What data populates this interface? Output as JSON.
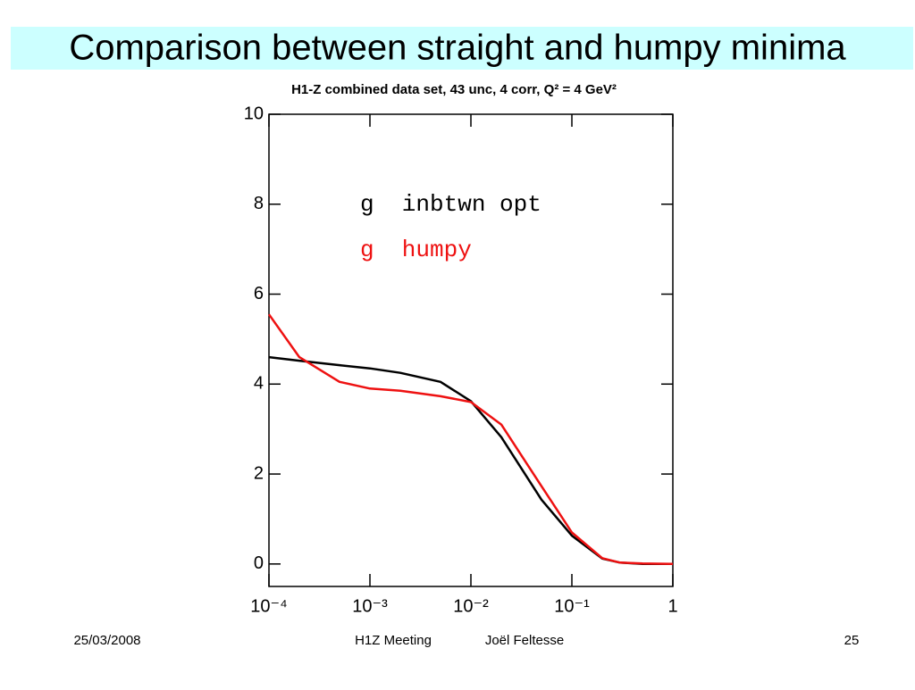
{
  "slide_title": "Comparison between straight and humpy minima",
  "chart_data": {
    "type": "line",
    "title": "H1-Z combined data set, 43 unc, 4 corr, Q² = 4 GeV²",
    "x": [
      0.0001,
      0.0002,
      0.0005,
      0.001,
      0.002,
      0.005,
      0.01,
      0.02,
      0.05,
      0.1,
      0.2,
      0.3,
      0.5,
      1
    ],
    "series": [
      {
        "name": "g  inbtwn opt",
        "color": "#000000",
        "values": [
          4.6,
          4.52,
          4.42,
          4.35,
          4.25,
          4.05,
          3.62,
          2.82,
          1.43,
          0.63,
          0.12,
          0.03,
          0.0,
          0.0
        ]
      },
      {
        "name": "g  humpy",
        "color": "#ee1111",
        "values": [
          5.55,
          4.6,
          4.05,
          3.9,
          3.85,
          3.73,
          3.6,
          3.1,
          1.73,
          0.7,
          0.13,
          0.03,
          0.01,
          0.0
        ]
      }
    ],
    "xlog": true,
    "xlim": [
      0.0001,
      1
    ],
    "xticks": [
      {
        "value": 0.0001,
        "label": "10⁻⁴"
      },
      {
        "value": 0.001,
        "label": "10⁻³"
      },
      {
        "value": 0.01,
        "label": "10⁻²"
      },
      {
        "value": 0.1,
        "label": "10⁻¹"
      },
      1
    ],
    "ylim": [
      -0.5,
      10
    ],
    "yticks": [
      0,
      2,
      4,
      6,
      8,
      10
    ]
  },
  "footer": {
    "date": "25/03/2008",
    "meeting": "H1Z Meeting",
    "author": "Joël Feltesse",
    "page": "25"
  }
}
